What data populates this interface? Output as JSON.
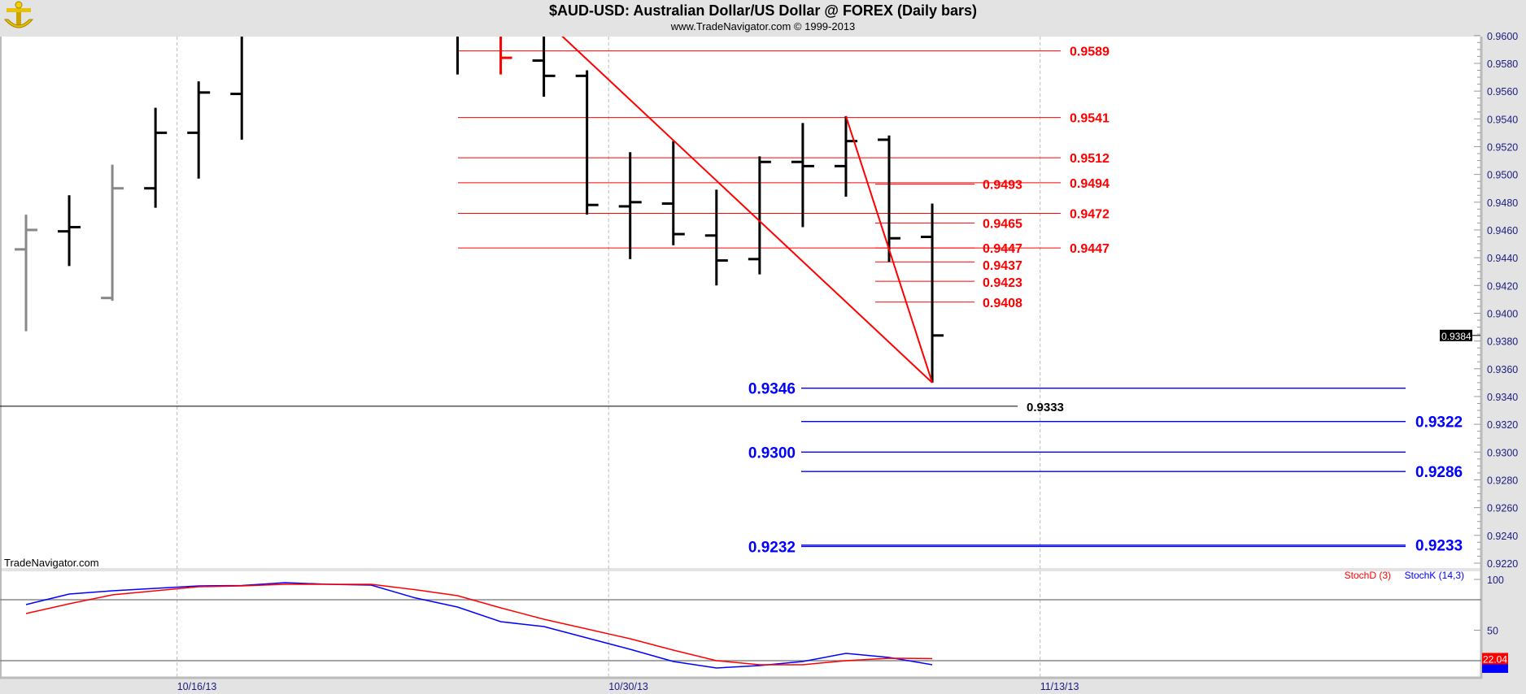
{
  "header": {
    "title": "$AUD-USD:  Australian Dollar/US Dollar @ FOREX  (Daily bars)",
    "subtitle": "www.TradeNavigator.com © 1999-2013",
    "logo": "TradeNavigator anchor logo"
  },
  "watermark": "TradeNavigator.com",
  "colors": {
    "up_bar": "#000000",
    "gray_bar": "#888888",
    "red_bar": "#ff0000",
    "resistance": "#ff0000",
    "support": "#0000ff",
    "stochD": "#ff0000",
    "stochK": "#0000ff",
    "axis_text": "#1c1c80"
  },
  "chart_data": [
    {
      "type": "ohlc",
      "title": "$AUD-USD:  Australian Dollar/US Dollar @ FOREX  (Daily bars)",
      "ylim": [
        0.9212,
        0.9638
      ],
      "y_ticks": [
        "0.9600",
        "0.9580",
        "0.9560",
        "0.9540",
        "0.9520",
        "0.9500",
        "0.9480",
        "0.9460",
        "0.9440",
        "0.9420",
        "0.9400",
        "0.9380",
        "0.9360",
        "0.9340",
        "0.9320",
        "0.9300",
        "0.9280",
        "0.9260",
        "0.9240",
        "0.9220"
      ],
      "x_ticks": [
        "10/16/13",
        "10/30/13",
        "11/13/13"
      ],
      "grid": "vertical dashed at date ticks",
      "last_price": "0.9384",
      "bars": [
        {
          "date": "10/10/13",
          "open": 0.9446,
          "high": 0.9471,
          "low": 0.9387,
          "close": 0.946,
          "color": "gray"
        },
        {
          "date": "10/11/13",
          "open": 0.9459,
          "high": 0.9485,
          "low": 0.9434,
          "close": 0.9462,
          "color": "black"
        },
        {
          "date": "10/14/13",
          "open": 0.9411,
          "high": 0.9507,
          "low": 0.9409,
          "close": 0.949,
          "color": "gray"
        },
        {
          "date": "10/15/13",
          "open": 0.949,
          "high": 0.9548,
          "low": 0.9476,
          "close": 0.953,
          "color": "black"
        },
        {
          "date": "10/16/13",
          "open": 0.953,
          "high": 0.9567,
          "low": 0.9497,
          "close": 0.9559,
          "color": "black"
        },
        {
          "date": "10/17/13",
          "open": 0.9558,
          "high": null,
          "low": 0.9525,
          "close": null,
          "color": "black"
        },
        {
          "date": "10/24/13",
          "open": null,
          "high": null,
          "low": 0.9572,
          "close": null,
          "color": "black"
        },
        {
          "date": "10/25/13",
          "open": null,
          "high": null,
          "low": 0.9572,
          "close": 0.9584,
          "color": "red"
        },
        {
          "date": "10/28/13",
          "open": 0.9582,
          "high": null,
          "low": 0.9556,
          "close": 0.9571,
          "color": "black"
        },
        {
          "date": "10/29/13",
          "open": 0.9571,
          "high": 0.9575,
          "low": 0.9471,
          "close": 0.9478,
          "color": "black"
        },
        {
          "date": "10/30/13",
          "open": 0.9477,
          "high": 0.9516,
          "low": 0.9439,
          "close": 0.948,
          "color": "black"
        },
        {
          "date": "10/31/13",
          "open": 0.9479,
          "high": 0.9524,
          "low": 0.9449,
          "close": 0.9457,
          "color": "black"
        },
        {
          "date": "11/1/13",
          "open": 0.9456,
          "high": 0.9489,
          "low": 0.942,
          "close": 0.9438,
          "color": "black"
        },
        {
          "date": "11/4/13",
          "open": 0.9439,
          "high": 0.9513,
          "low": 0.9428,
          "close": 0.9509,
          "color": "black"
        },
        {
          "date": "11/5/13",
          "open": 0.9509,
          "high": 0.9537,
          "low": 0.9462,
          "close": 0.9506,
          "color": "black"
        },
        {
          "date": "11/6/13",
          "open": 0.9506,
          "high": 0.9542,
          "low": 0.9484,
          "close": 0.9524,
          "color": "black"
        },
        {
          "date": "11/7/13",
          "open": 0.9525,
          "high": 0.9528,
          "low": 0.9437,
          "close": 0.9454,
          "color": "black"
        },
        {
          "date": "11/8/13",
          "open": 0.9455,
          "high": 0.9479,
          "low": 0.935,
          "close": 0.9384,
          "color": "black"
        }
      ],
      "resistance_levels_long": [
        {
          "value": 0.9589,
          "label": "0.9589"
        },
        {
          "value": 0.9541,
          "label": "0.9541"
        },
        {
          "value": 0.9512,
          "label": "0.9512"
        },
        {
          "value": 0.9494,
          "label": "0.9494"
        },
        {
          "value": 0.9472,
          "label": "0.9472"
        },
        {
          "value": 0.9447,
          "label": "0.9447"
        }
      ],
      "resistance_levels_short": [
        {
          "value": 0.9493,
          "label": "0.9493"
        },
        {
          "value": 0.9465,
          "label": "0.9465"
        },
        {
          "value": 0.9447,
          "label": "0.9447"
        },
        {
          "value": 0.9437,
          "label": "0.9437"
        },
        {
          "value": 0.9423,
          "label": "0.9423"
        },
        {
          "value": 0.9408,
          "label": "0.9408"
        }
      ],
      "support_levels": [
        {
          "value": 0.9346,
          "label": "0.9346",
          "side": "left"
        },
        {
          "value": 0.9322,
          "label": "0.9322",
          "side": "right"
        },
        {
          "value": 0.93,
          "label": "0.9300",
          "side": "left"
        },
        {
          "value": 0.9286,
          "label": "0.9286",
          "side": "right"
        },
        {
          "value": 0.9232,
          "label": "0.9232",
          "side": "left"
        },
        {
          "value": 0.9233,
          "label": "0.9233",
          "side": "right"
        }
      ],
      "black_level": {
        "value": 0.9333,
        "label": "0.9333"
      },
      "trendlines": [
        {
          "from": {
            "date": "10/25/13",
            "price": 0.9641
          },
          "to": {
            "date": "11/8/13",
            "price": 0.935
          }
        },
        {
          "from": {
            "date": "11/6/13",
            "price": 0.9542
          },
          "to": {
            "date": "11/8/13",
            "price": 0.935
          }
        }
      ]
    },
    {
      "type": "line",
      "ylim": [
        0,
        100
      ],
      "y_ticks": [
        "100",
        "50"
      ],
      "reference_lines": [
        80,
        20
      ],
      "legend": "top-right",
      "series": [
        {
          "name": "StochD (3)",
          "color": "#ff0000",
          "last_label": "22.04",
          "values": [
            66.4,
            76,
            84.8,
            88.8,
            92.8,
            93.6,
            95.2,
            95.2,
            95.2,
            90,
            84,
            72,
            60.8,
            51.2,
            41.6,
            30.4,
            20,
            16,
            16,
            20,
            22.4,
            22.04
          ]
        },
        {
          "name": "StochK (14,3)",
          "color": "#0000ff",
          "values": [
            75.2,
            85.6,
            88.8,
            91.2,
            93.6,
            94,
            96.8,
            95.2,
            94.4,
            82,
            72.8,
            58.4,
            53.6,
            42.4,
            31.2,
            19.2,
            12.8,
            15.2,
            19.2,
            27.2,
            23.2,
            16
          ]
        }
      ]
    }
  ]
}
